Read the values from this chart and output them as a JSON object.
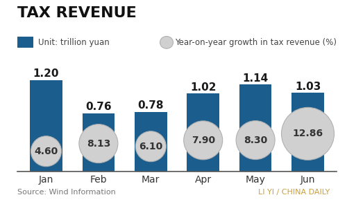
{
  "title": "TAX REVENUE",
  "legend_bar_label": "Unit: trillion yuan",
  "legend_circle_label": "Year-on-year growth in tax revenue (%)",
  "source_left": "Source: Wind Information",
  "source_right": "LI YI / CHINA DAILY",
  "months": [
    "Jan",
    "Feb",
    "Mar",
    "Apr",
    "May",
    "Jun"
  ],
  "bar_values": [
    1.2,
    0.76,
    0.78,
    1.02,
    1.14,
    1.03
  ],
  "circle_values": [
    "4.60",
    "8.13",
    "6.10",
    "7.90",
    "8.30",
    "12.86"
  ],
  "bar_color": "#1b5e8e",
  "circle_color": "#d0d0d0",
  "circle_edge_color": "#b0b0b0",
  "bg_color": "#ffffff",
  "title_fontsize": 16,
  "bar_label_fontsize": 11,
  "circle_label_fontsize": 10,
  "axis_label_fontsize": 10,
  "source_fontsize": 8,
  "legend_fontsize": 8.5,
  "ylim": [
    0,
    1.5
  ],
  "bar_width": 0.62
}
